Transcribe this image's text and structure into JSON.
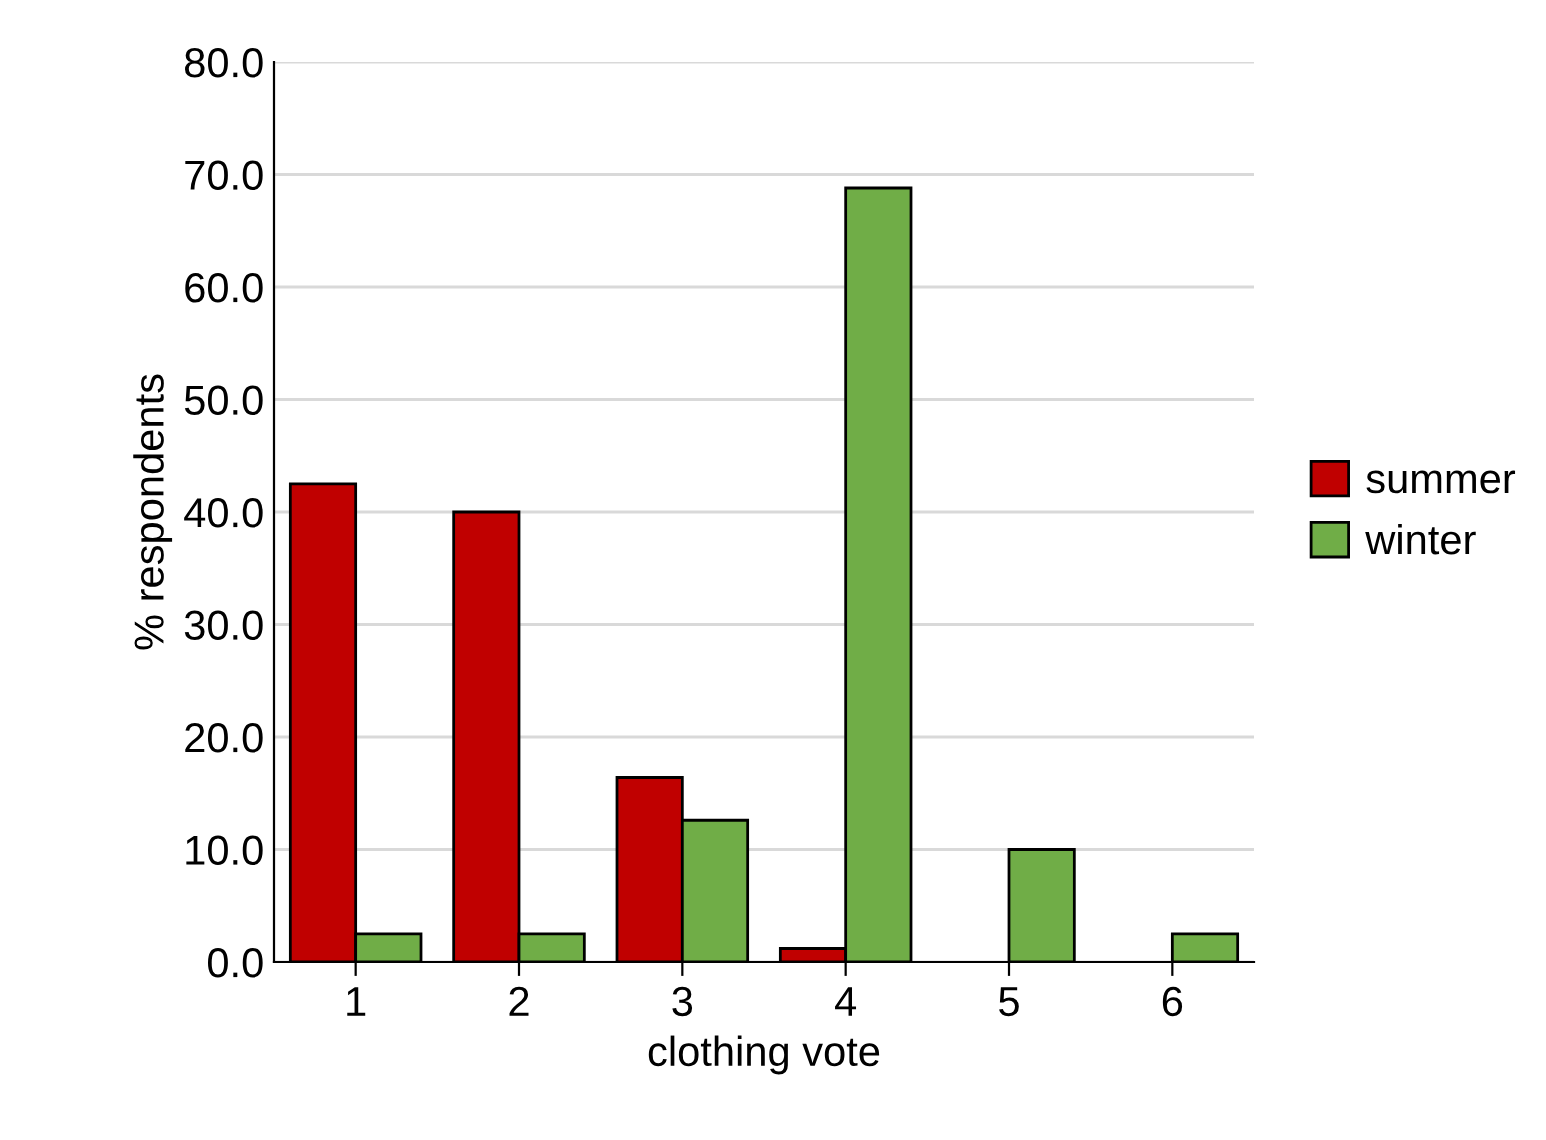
{
  "chart_data": {
    "type": "bar",
    "xlabel": "clothing vote",
    "ylabel": "% respondents",
    "categories": [
      "1",
      "2",
      "3",
      "4",
      "5",
      "6"
    ],
    "series": [
      {
        "name": "summer",
        "color": "#c00000",
        "values": [
          42.5,
          40.0,
          16.4,
          1.2,
          null,
          null
        ]
      },
      {
        "name": "winter",
        "color": "#70ad47",
        "values": [
          2.5,
          2.5,
          12.6,
          68.8,
          10.0,
          2.5
        ]
      }
    ],
    "ylim": [
      0,
      80
    ],
    "yticks": [
      {
        "value": 0,
        "label": "0.0"
      },
      {
        "value": 10,
        "label": "10.0"
      },
      {
        "value": 20,
        "label": "20.0"
      },
      {
        "value": 30,
        "label": "30.0"
      },
      {
        "value": 40,
        "label": "40.0"
      },
      {
        "value": 50,
        "label": "50.0"
      },
      {
        "value": 60,
        "label": "60.0"
      },
      {
        "value": 70,
        "label": "70.0"
      },
      {
        "value": 80,
        "label": "80.0"
      }
    ],
    "grid": "y",
    "legend": "right"
  }
}
